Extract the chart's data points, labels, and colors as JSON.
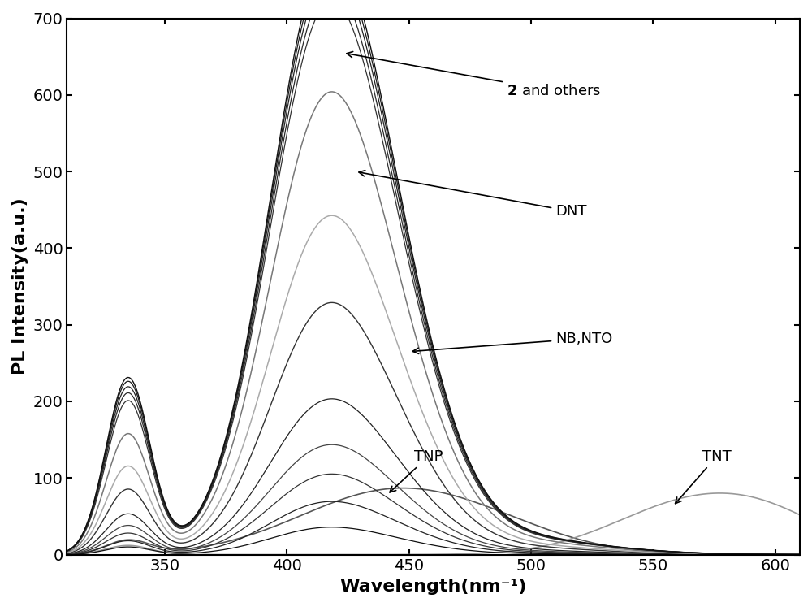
{
  "xlabel": "Wavelength(nm⁻¹)",
  "ylabel": "PL Intensity(a.u.)",
  "xlim": [
    310,
    610
  ],
  "ylim": [
    0,
    700
  ],
  "xticks": [
    350,
    400,
    450,
    500,
    550,
    600
  ],
  "yticks": [
    0,
    100,
    200,
    300,
    400,
    500,
    600,
    700
  ],
  "bg_color": "#ffffff",
  "curves": [
    {
      "peak1": 230,
      "peak2": 660,
      "color": "#111111",
      "lw": 1.0
    },
    {
      "peak1": 225,
      "peak2": 650,
      "color": "#1a1a1a",
      "lw": 0.9
    },
    {
      "peak1": 218,
      "peak2": 638,
      "color": "#222222",
      "lw": 0.9
    },
    {
      "peak1": 210,
      "peak2": 622,
      "color": "#2a2a2a",
      "lw": 0.9
    },
    {
      "peak1": 200,
      "peak2": 605,
      "color": "#333333",
      "lw": 0.9
    },
    {
      "peak1": 157,
      "peak2": 505,
      "color": "#777777",
      "lw": 1.1
    },
    {
      "peak1": 115,
      "peak2": 370,
      "color": "#aaaaaa",
      "lw": 1.1
    },
    {
      "peak1": 85,
      "peak2": 275,
      "color": "#333333",
      "lw": 1.0
    },
    {
      "peak1": 53,
      "peak2": 170,
      "color": "#222222",
      "lw": 0.9
    },
    {
      "peak1": 38,
      "peak2": 120,
      "color": "#444444",
      "lw": 0.9
    },
    {
      "peak1": 28,
      "peak2": 88,
      "color": "#333333",
      "lw": 0.9
    },
    {
      "peak1": 18,
      "peak2": 58,
      "color": "#222222",
      "lw": 0.9
    },
    {
      "peak1": 10,
      "peak2": 30,
      "color": "#111111",
      "lw": 0.9
    }
  ],
  "tnp_curve": {
    "color": "#555555",
    "lw": 1.2
  },
  "tnt_curve": {
    "color": "#999999",
    "lw": 1.2
  }
}
